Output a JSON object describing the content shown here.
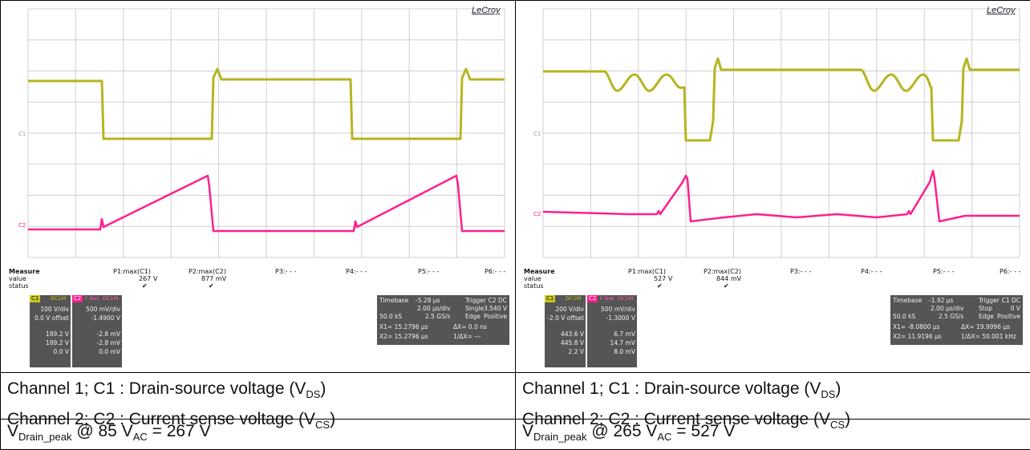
{
  "panels": [
    {
      "logo": "LeCroy",
      "channel_markers": {
        "c1": "C1",
        "c2": "C2"
      },
      "measure": {
        "label_measure": "Measure",
        "label_value": "value",
        "label_status": "status",
        "p1_name": "P1:max(C1)",
        "p1_value": "267 V",
        "p2_name": "P2:max(C2)",
        "p2_value": "877 mV",
        "p3_name": "P3:- - -",
        "p4_name": "P4:- - -",
        "p5_name": "P5:- - -",
        "p6_name": "P6:- - -"
      },
      "c1": {
        "tag": "C1",
        "coupling": "DC1M",
        "vdiv": "100 V/div",
        "offset": "0.0 V offset",
        "r1": "189.2 V",
        "r2": "189.2 V",
        "r3": "0.0 V"
      },
      "c2": {
        "tag": "C2",
        "flags": "F Bwl",
        "coupling": "DC1M",
        "vdiv": "500 mV/div",
        "offset": "-1.4900 V",
        "r1": "-2.8 mV",
        "r2": "-2.8 mV",
        "r3": "0.0 mV"
      },
      "timebase": {
        "label": "Timebase",
        "offset": "-5.28 µs",
        "trig_label": "Trigger",
        "trig_ch": "C2 DC",
        "tdiv": "2.00 µs/div",
        "mode": "Single",
        "level": "3.540 V",
        "samples": "50.0 kS",
        "rate": "2.5 GS/s",
        "edge": "Edge",
        "slope": "Positive",
        "x1": "X1= 15.2796 µs",
        "dx": "ΔX= 0.0 ns",
        "x2": "X2= 15.2796 µs",
        "freq": "1/ΔX= ---"
      }
    },
    {
      "logo": "LeCroy",
      "channel_markers": {
        "c1": "C1",
        "c2": "C2"
      },
      "measure": {
        "label_measure": "Measure",
        "label_value": "value",
        "label_status": "status",
        "p1_name": "P1:max(C1)",
        "p1_value": "527 V",
        "p2_name": "P2:max(C2)",
        "p2_value": "844 mV",
        "p3_name": "P3:- - -",
        "p4_name": "P4:- - -",
        "p5_name": "P5:- - -",
        "p6_name": "P6:- - -"
      },
      "c1": {
        "tag": "C1",
        "coupling": "DC1M",
        "vdiv": "200 V/div",
        "offset": "-2.0 V offset",
        "r1": "443.6 V",
        "r2": "445.8 V",
        "r3": "2.2 V"
      },
      "c2": {
        "tag": "C2",
        "flags": "F Bwl",
        "coupling": "DC1M",
        "vdiv": "500 mV/div",
        "offset": "-1.3000 V",
        "r1": "6.7 mV",
        "r2": "14.7 mV",
        "r3": "8.0 mV"
      },
      "timebase": {
        "label": "Timebase",
        "offset": "-1.92 µs",
        "trig_label": "Trigger",
        "trig_ch": "C1 DC",
        "tdiv": "2.00 µs/div",
        "mode": "Stop",
        "level": "0 V",
        "samples": "50.0 kS",
        "rate": "2.5 GS/s",
        "edge": "Edge",
        "slope": "Positive",
        "x1": "X1= -8.0800 µs",
        "dx": "ΔX= 19.9996 µs",
        "x2": "X2= 11.9196 µs",
        "freq": "1/ΔX= 50.001 kHz"
      }
    }
  ],
  "captions": {
    "line1_text": "Channel 1; C1 : Drain-source voltage (V",
    "line1_sub": "DS",
    "line2_text": "Channel 2; C2 : Current sense voltage (V",
    "line2_sub": "CS",
    "close": ")"
  },
  "peaks": [
    {
      "v": "V",
      "sub1": "Drain_peak",
      "mid": " @ 85 V",
      "sub2": "AC",
      "end": " = 267 V"
    },
    {
      "v": "V",
      "sub1": "Drain_peak",
      "mid": " @ 265 V",
      "sub2": "AC",
      "end": " = 527 V"
    }
  ],
  "colors": {
    "c1_trace": "#b5b520",
    "c2_trace": "#ff1f8e",
    "grid": "#cfcfcf",
    "panel_bg": "#555555"
  }
}
